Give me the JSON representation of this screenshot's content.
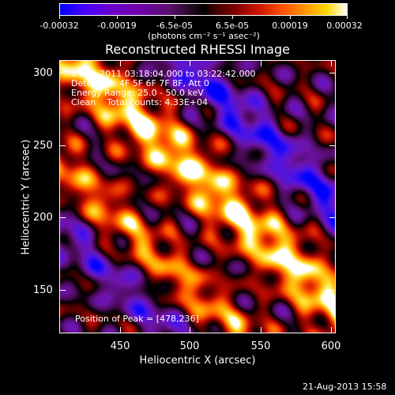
{
  "colorbar": {
    "tick_labels": [
      "-0.00032",
      "-0.00019",
      "-6.5e-05",
      "6.5e-05",
      "0.00019",
      "0.00032"
    ],
    "unit_label": "(photons cm⁻² s⁻¹ asec⁻²)"
  },
  "title": "Reconstructed RHESSI Image",
  "axes": {
    "xlabel": "Heliocentric X (arcsec)",
    "ylabel": "Heliocentric Y (arcsec)",
    "x_ticks": [
      "450",
      "500",
      "550",
      "600"
    ],
    "y_ticks": [
      "300",
      "250",
      "200",
      "150"
    ]
  },
  "info": {
    "time_range": "6-Aug-2011 03:18:04.000 to 03:22:42.000",
    "detectors": "Detectors: 4F 5F 6F 7F 8F, Att 0",
    "energy": "Energy Range: 25.0 - 50.0 keV",
    "clean": "Clean    Total counts: 4.33E+04",
    "peak": "Position of Peak = [478,236]"
  },
  "footer_timestamp": "21-Aug-2013 15:58",
  "colors": {
    "background": "#000000",
    "text": "#ffffff"
  }
}
